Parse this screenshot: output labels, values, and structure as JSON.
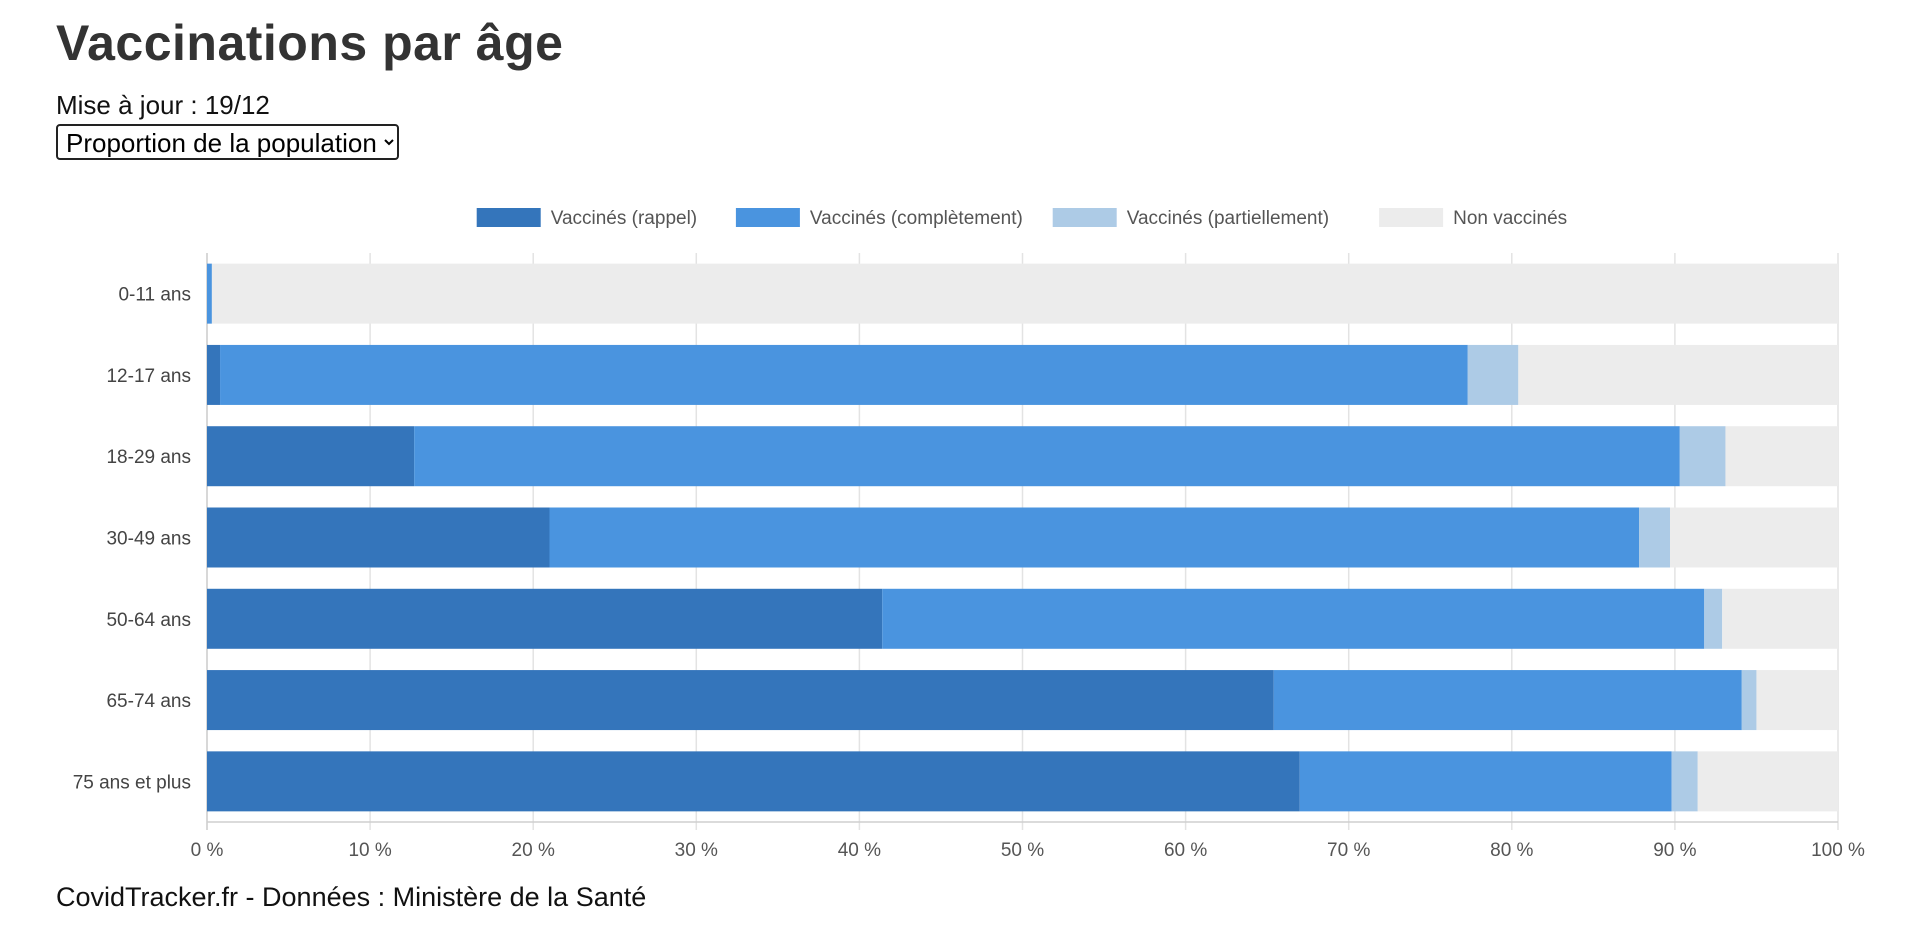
{
  "page": {
    "title": "Vaccinations par âge",
    "updated": "Mise à jour : 19/12",
    "footer": "CovidTracker.fr - Données : Ministère de la Santé"
  },
  "view_select": {
    "selected": "Proportion de la population"
  },
  "chart_data": {
    "type": "bar",
    "orientation": "horizontal",
    "stacked": true,
    "categories": [
      "0-11 ans",
      "12-17 ans",
      "18-29 ans",
      "30-49 ans",
      "50-64 ans",
      "65-74 ans",
      "75 ans et plus"
    ],
    "series": [
      {
        "name": "Vaccinés (rappel)",
        "color": "#3475bb",
        "values": [
          0,
          0.8,
          12.7,
          21.0,
          41.4,
          65.4,
          67.0
        ]
      },
      {
        "name": "Vaccinés (complètement)",
        "color": "#4a94df",
        "values": [
          0.3,
          76.5,
          77.6,
          66.8,
          50.4,
          28.7,
          22.8
        ]
      },
      {
        "name": "Vaccinés (partiellement)",
        "color": "#adcbe6",
        "values": [
          0,
          3.1,
          2.8,
          1.9,
          1.1,
          0.9,
          1.6
        ]
      },
      {
        "name": "Non vaccinés",
        "color": "#ececec",
        "values": [
          99.7,
          19.6,
          6.9,
          10.3,
          7.1,
          5.0,
          8.6
        ]
      }
    ],
    "x_ticks": [
      "0 %",
      "10 %",
      "20 %",
      "30 %",
      "40 %",
      "50 %",
      "60 %",
      "70 %",
      "80 %",
      "90 %",
      "100 %"
    ],
    "xlim": [
      0,
      100
    ],
    "legend_position": "top",
    "grid": true
  }
}
